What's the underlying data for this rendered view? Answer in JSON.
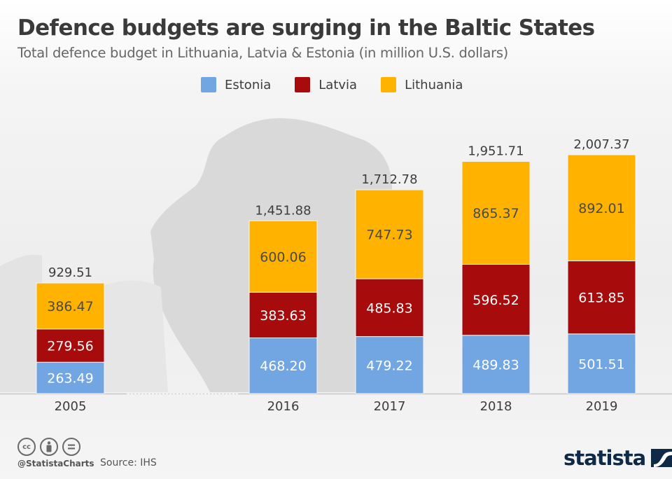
{
  "header": {
    "title": "Defence budgets are surging in the Baltic States",
    "subtitle": "Total defence budget in Lithuania, Latvia & Estonia (in million U.S. dollars)"
  },
  "legend": [
    {
      "label": "Estonia",
      "color": "#72a6e3"
    },
    {
      "label": "Latvia",
      "color": "#a80b0b"
    },
    {
      "label": "Lithuania",
      "color": "#ffb300"
    }
  ],
  "chart_data": {
    "type": "bar",
    "stacked": true,
    "title": "Defence budgets are surging in the Baltic States",
    "subtitle": "Total defence budget in Lithuania, Latvia & Estonia (in million U.S. dollars)",
    "xlabel": "",
    "ylabel": "",
    "categories": [
      "2005",
      "2016",
      "2017",
      "2018",
      "2019"
    ],
    "series": [
      {
        "name": "Estonia",
        "color": "#72a6e3",
        "values": [
          263.49,
          468.2,
          479.22,
          489.83,
          501.51
        ],
        "labels": [
          "263.49",
          "468.20",
          "479.22",
          "489.83",
          "501.51"
        ]
      },
      {
        "name": "Latvia",
        "color": "#a80b0b",
        "values": [
          279.56,
          383.63,
          485.83,
          596.52,
          613.85
        ],
        "labels": [
          "279.56",
          "383.63",
          "485.83",
          "596.52",
          "613.85"
        ]
      },
      {
        "name": "Lithuania",
        "color": "#ffb300",
        "values": [
          386.47,
          600.06,
          747.73,
          865.37,
          892.01
        ],
        "labels": [
          "386.47",
          "600.06",
          "747.73",
          "865.37",
          "892.01"
        ]
      }
    ],
    "totals": [
      929.51,
      1451.88,
      1712.78,
      1951.71,
      2007.37
    ],
    "total_labels": [
      "929.51",
      "1,451.88",
      "1,712.78",
      "1,951.71",
      "2,007.37"
    ],
    "ylim": [
      0,
      2200
    ],
    "grid": false,
    "legend_position": "top-center",
    "axis_break_after": "2005"
  },
  "footer": {
    "handle": "@StatistaCharts",
    "source": "Source: IHS",
    "license_icons": [
      "cc",
      "by",
      "nd"
    ],
    "logo": "statista"
  }
}
